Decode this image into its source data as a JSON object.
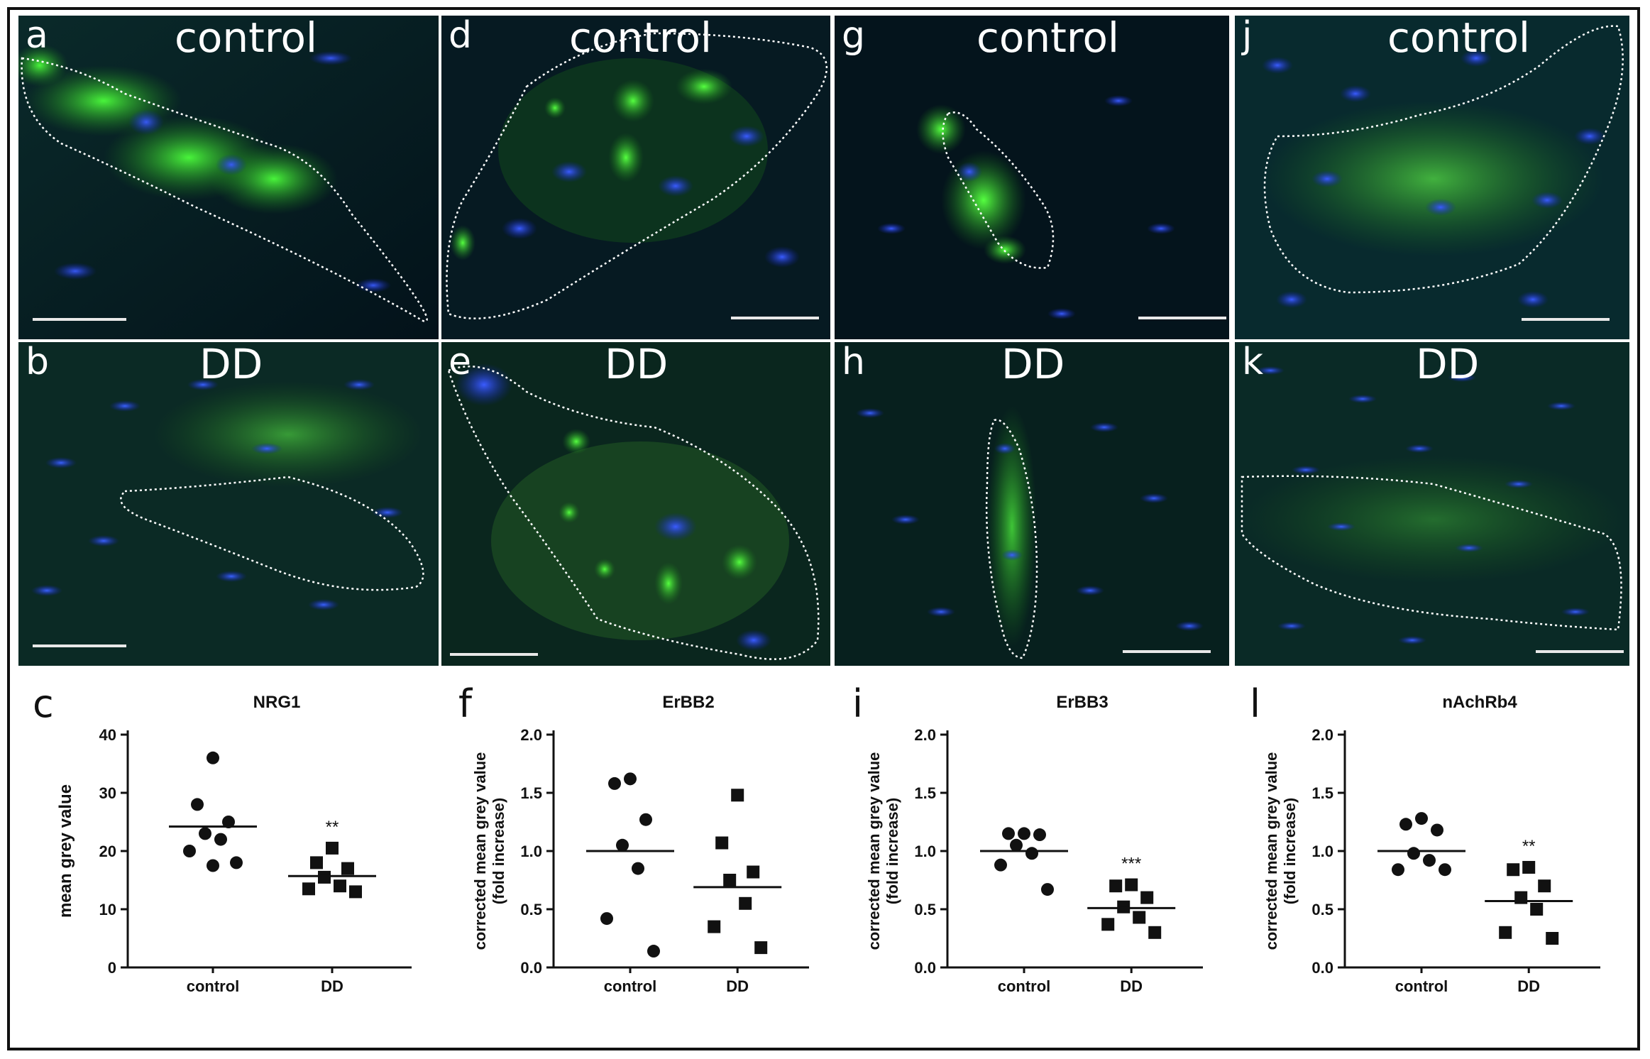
{
  "panels": [
    {
      "id": "a",
      "letter": "a",
      "title": "control"
    },
    {
      "id": "b",
      "letter": "b",
      "title": "DD"
    },
    {
      "id": "d",
      "letter": "d",
      "title": "control"
    },
    {
      "id": "e",
      "letter": "e",
      "title": "DD"
    },
    {
      "id": "g",
      "letter": "g",
      "title": "control"
    },
    {
      "id": "h",
      "letter": "h",
      "title": "DD"
    },
    {
      "id": "j",
      "letter": "j",
      "title": "control"
    },
    {
      "id": "k",
      "letter": "k",
      "title": "DD"
    }
  ],
  "chart_data": [
    {
      "letter": "c",
      "type": "scatter",
      "title": "NRG1",
      "ylabel": "mean grey value",
      "ylim": [
        0,
        40
      ],
      "yticks": [
        "0",
        "10",
        "20",
        "30",
        "40"
      ],
      "categories": [
        "control",
        "DD"
      ],
      "series": [
        {
          "values": [
            36,
            28,
            25,
            23,
            22,
            20,
            18,
            17.5
          ],
          "mean": 24.2,
          "marker": "circle"
        },
        {
          "values": [
            20.5,
            18,
            17,
            15.5,
            14,
            13.5,
            13
          ],
          "mean": 15.7,
          "marker": "square",
          "significance": "**"
        }
      ]
    },
    {
      "letter": "f",
      "type": "scatter",
      "title": "ErBB2",
      "ylabel": "corrected mean grey value (fold increase)",
      "ylabel_lines": [
        "corrected mean grey value",
        "(fold increase)"
      ],
      "ylim": [
        0,
        2.0
      ],
      "yticks": [
        "0.0",
        "0.5",
        "1.0",
        "1.5",
        "2.0"
      ],
      "categories": [
        "control",
        "DD"
      ],
      "series": [
        {
          "values": [
            1.62,
            1.58,
            1.27,
            1.05,
            0.85,
            0.42,
            0.14
          ],
          "mean": 1.0,
          "marker": "circle"
        },
        {
          "values": [
            1.48,
            1.07,
            0.82,
            0.75,
            0.55,
            0.35,
            0.17
          ],
          "mean": 0.69,
          "marker": "square"
        }
      ]
    },
    {
      "letter": "i",
      "type": "scatter",
      "title": "ErBB3",
      "ylabel": "corrected mean grey value (fold increase)",
      "ylabel_lines": [
        "corrected mean grey value",
        "(fold increase)"
      ],
      "ylim": [
        0,
        2.0
      ],
      "yticks": [
        "0.0",
        "0.5",
        "1.0",
        "1.5",
        "2.0"
      ],
      "categories": [
        "control",
        "DD"
      ],
      "series": [
        {
          "values": [
            1.15,
            1.15,
            1.14,
            1.05,
            0.98,
            0.88,
            0.67
          ],
          "mean": 1.0,
          "marker": "circle"
        },
        {
          "values": [
            0.71,
            0.7,
            0.6,
            0.52,
            0.43,
            0.37,
            0.3
          ],
          "mean": 0.51,
          "marker": "square",
          "significance": "***"
        }
      ]
    },
    {
      "letter": "l",
      "type": "scatter",
      "title": "nAchRb4",
      "ylabel": "corrected mean grey value (fold increase)",
      "ylabel_lines": [
        "corrected mean grey value",
        "(fold increase)"
      ],
      "ylim": [
        0,
        2.0
      ],
      "yticks": [
        "0.0",
        "0.5",
        "1.0",
        "1.5",
        "2.0"
      ],
      "categories": [
        "control",
        "DD"
      ],
      "series": [
        {
          "values": [
            1.28,
            1.23,
            1.18,
            0.98,
            0.92,
            0.84,
            0.84
          ],
          "mean": 1.0,
          "marker": "circle"
        },
        {
          "values": [
            0.86,
            0.84,
            0.7,
            0.6,
            0.5,
            0.3,
            0.25
          ],
          "mean": 0.57,
          "marker": "square",
          "significance": "**"
        }
      ]
    }
  ]
}
